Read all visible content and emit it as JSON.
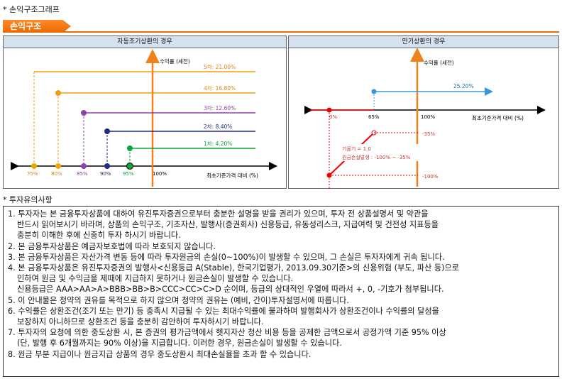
{
  "header_title": "* 손익구조그래프",
  "tag_label": "손익구조",
  "left_panel": {
    "title": "자동조기상환의 경우",
    "y_label": "수익률 (세전)",
    "x_label": "최초기준가격 대비 (%)",
    "x_ticks": [
      "75%",
      "80%",
      "85%",
      "90%",
      "95%",
      "100%"
    ],
    "steps": [
      {
        "label": "5차: 21.00%",
        "color": "#f39c12"
      },
      {
        "label": "4차: 16.80%",
        "color": "#f39c12"
      },
      {
        "label": "3차: 12.60%",
        "color": "#8e44ad"
      },
      {
        "label": "2차: 8.40%",
        "color": "#1f2d7a"
      },
      {
        "label": "1차: 4.20%",
        "color": "#0fa33c"
      }
    ]
  },
  "right_panel": {
    "title": "만기상환의 경우",
    "y_label": "수익률 (세전)",
    "x_label": "최초기준가격 대비 (%)",
    "x_ticks": [
      "0%",
      "65%",
      "100%"
    ],
    "upper_label": "25.20%",
    "minus35": "-35%",
    "minus100": "-100%",
    "slope_label": "기울기 = 1.0",
    "loss_label": "원금손실발생 : -100% ~ -35%"
  },
  "notice_title": "* 투자유의사항",
  "notices": [
    "1. 투자자는 본 금융투자상품에 대하여 유진투자증권으로부터 충분한 설명을 받을 권리가 있으며, 투자 전 상품설명서 및 약관을",
    "반드시 읽어보시기 바라며, 상품의 손익구조, 기초자산, 발행사(증권회사) 신용등급, 유동성리스크, 지급여력 및 건전성 지표등을",
    "충분히 이해한 후에 신중히 투자 하시기 바랍니다.",
    "2. 본 금융투자상품은 예금자보호법에 따라 보호되지 않습니다.",
    "3. 본 금융투자상품은 자산가격 변동 등에 따라 투자원금의 손실(0~100%)이 발생할 수 있으며, 그 손실은 투자자에게 귀속 됩니다.",
    "4. 본 금융투자상품은 유진투자증권의 발행사<신용등급 A(Stable), 한국기업평가, 2013.09.30기준>의 신용위험 (부도, 파산 등)으로",
    "인하여 원금 및 수익금을 제때에 지급하지 못하거나 원금손실이 발생할 수 있습니다.",
    "신용등급은 AAA>AA>A>BBB>BB>B>CCC>CC>C>D 순이며, 등급의 상대적인 우열에 따라서 +, 0, -기호가 첨부됩니다.",
    "5. 이 안내물은 청약의 권유를 목적으로 하지 않으며 청약의 권유는 (예비, 간이)투자설명서에 따릅니다.",
    "6. 수익률은 상환조건(조기 또는 만기) 등 충족시 지급될 수 있는 최대수익률에 불과하며 발행회사가 상환조건이나 수익률의 달성을",
    "보장하지 아니하므로 상환조건 등을 충분히 감안하여 투자하시기 바랍니다.",
    "7. 투자자의 요청에 의한 중도상환 시, 본 증권의 평가금액에서 헷지자산 청산 비용 등을 공제한 금액으로서 공정가액 기준 95% 이상",
    "(단, 발행 후 6개월까지는 90% 이상)을 지급합니다. 이러한 경우, 원금손실이 발생할 수 있습니다.",
    "8. 원금 부분 지급이나 원금지급 상품의 경우 중도상환시 최대손실율을 초과 할 수 있습니다."
  ]
}
